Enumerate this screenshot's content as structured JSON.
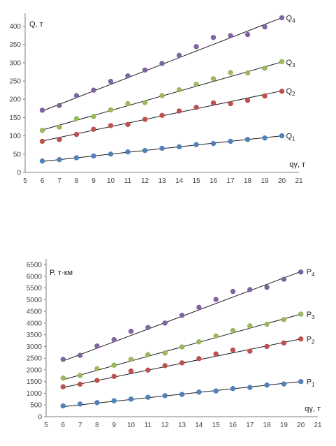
{
  "chart_data": [
    {
      "type": "scatter",
      "ylabel": "Q, т",
      "xlabel": "qγ, т",
      "xlim": [
        5,
        21
      ],
      "ylim": [
        0,
        420
      ],
      "xticks": [
        5,
        6,
        7,
        8,
        9,
        10,
        11,
        12,
        13,
        14,
        15,
        16,
        17,
        18,
        19,
        20,
        21
      ],
      "yticks": [
        0,
        50,
        100,
        150,
        200,
        250,
        300,
        350,
        400
      ],
      "grid": false,
      "trendlines": true,
      "series": [
        {
          "name": "Q1",
          "sub": "1",
          "base": "Q",
          "color": "#4f81bd",
          "x": [
            6,
            7,
            8,
            9,
            10,
            11,
            12,
            13,
            14,
            15,
            16,
            17,
            18,
            19,
            20
          ],
          "y": [
            31,
            35,
            40,
            45,
            50,
            56,
            60,
            66,
            70,
            76,
            79,
            85,
            90,
            94,
            100
          ],
          "fit": [
            30,
            100
          ]
        },
        {
          "name": "Q2",
          "sub": "2",
          "base": "Q",
          "color": "#c0504d",
          "x": [
            6,
            7,
            8,
            9,
            10,
            11,
            12,
            13,
            14,
            15,
            16,
            17,
            18,
            19,
            20
          ],
          "y": [
            85,
            90,
            104,
            118,
            128,
            131,
            145,
            156,
            168,
            178,
            190,
            188,
            197,
            209,
            222
          ],
          "fit": [
            86,
            223
          ]
        },
        {
          "name": "Q3",
          "sub": "3",
          "base": "Q",
          "color": "#9bbb59",
          "x": [
            6,
            7,
            8,
            9,
            10,
            11,
            12,
            13,
            14,
            15,
            16,
            17,
            18,
            19,
            20
          ],
          "y": [
            115,
            124,
            147,
            153,
            171,
            188,
            191,
            210,
            226,
            241,
            256,
            273,
            272,
            285,
            303
          ],
          "fit": [
            116,
            302
          ]
        },
        {
          "name": "Q4",
          "sub": "4",
          "base": "Q",
          "color": "#8064a2",
          "x": [
            6,
            7,
            8,
            9,
            10,
            11,
            12,
            13,
            14,
            15,
            16,
            17,
            18,
            19,
            20
          ],
          "y": [
            170,
            183,
            210,
            225,
            249,
            264,
            280,
            298,
            320,
            344,
            369,
            374,
            377,
            398,
            423
          ],
          "fit": [
            168,
            423
          ]
        }
      ]
    },
    {
      "type": "scatter",
      "ylabel": "P, т·км",
      "xlabel": "qγ, т",
      "xlim": [
        5,
        21
      ],
      "ylim": [
        0,
        6500
      ],
      "xticks": [
        5,
        6,
        7,
        8,
        9,
        10,
        11,
        12,
        13,
        14,
        15,
        16,
        17,
        18,
        19,
        20,
        21
      ],
      "yticks": [
        0,
        500,
        1000,
        1500,
        2000,
        2500,
        3000,
        3500,
        4000,
        4500,
        5000,
        5500,
        6000,
        6500
      ],
      "grid": false,
      "trendlines": true,
      "series": [
        {
          "name": "P1",
          "sub": "1",
          "base": "P",
          "color": "#4f81bd",
          "x": [
            6,
            7,
            8,
            9,
            10,
            11,
            12,
            13,
            14,
            15,
            16,
            17,
            18,
            19,
            20
          ],
          "y": [
            460,
            540,
            600,
            680,
            750,
            830,
            900,
            950,
            1050,
            1100,
            1200,
            1250,
            1350,
            1400,
            1500
          ],
          "fit": [
            430,
            1500
          ]
        },
        {
          "name": "P2",
          "sub": "2",
          "base": "P",
          "color": "#c0504d",
          "x": [
            6,
            7,
            8,
            9,
            10,
            11,
            12,
            13,
            14,
            15,
            16,
            17,
            18,
            19,
            20
          ],
          "y": [
            1280,
            1390,
            1550,
            1720,
            1950,
            1990,
            2180,
            2300,
            2480,
            2680,
            2850,
            2800,
            3000,
            3150,
            3320
          ],
          "fit": [
            1250,
            3320
          ]
        },
        {
          "name": "P3",
          "sub": "3",
          "base": "P",
          "color": "#9bbb59",
          "x": [
            6,
            7,
            8,
            9,
            10,
            11,
            12,
            13,
            14,
            15,
            16,
            17,
            18,
            19,
            20
          ],
          "y": [
            1650,
            1760,
            2050,
            2200,
            2450,
            2650,
            2720,
            2980,
            3200,
            3450,
            3680,
            3880,
            3950,
            4150,
            4380
          ],
          "fit": [
            1580,
            4380
          ]
        },
        {
          "name": "P4",
          "sub": "4",
          "base": "P",
          "color": "#8064a2",
          "x": [
            6,
            7,
            8,
            9,
            10,
            11,
            12,
            13,
            14,
            15,
            16,
            17,
            18,
            19,
            20
          ],
          "y": [
            2450,
            2620,
            3020,
            3290,
            3650,
            3810,
            4000,
            4330,
            4670,
            5010,
            5350,
            5430,
            5530,
            5870,
            6180
          ],
          "fit": [
            2380,
            6200
          ]
        }
      ]
    }
  ]
}
